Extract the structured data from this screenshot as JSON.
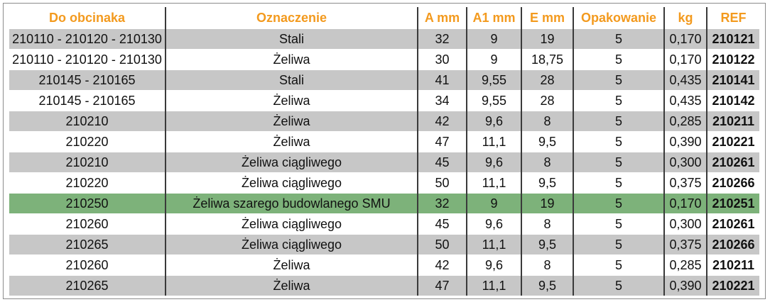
{
  "table": {
    "headers": [
      "Do obcinaka",
      "Oznaczenie",
      "A mm",
      "A1 mm",
      "E mm",
      "Opakowanie",
      "kg",
      "REF"
    ],
    "highlight_color": "#7db27a",
    "header_color": "#f39a1e",
    "rows": [
      [
        "210110 - 210120 - 210130",
        "Stali",
        "32",
        "9",
        "19",
        "5",
        "0,170",
        "210121"
      ],
      [
        "210110 - 210120 - 210130",
        "Żeliwa",
        "30",
        "9",
        "18,75",
        "5",
        "0,170",
        "210122"
      ],
      [
        "210145 - 210165",
        "Stali",
        "41",
        "9,55",
        "28",
        "5",
        "0,435",
        "210141"
      ],
      [
        "210145 - 210165",
        "Żeliwa",
        "34",
        "9,55",
        "28",
        "5",
        "0,435",
        "210142"
      ],
      [
        "210210",
        "Żeliwa",
        "42",
        "9,6",
        "8",
        "5",
        "0,285",
        "210211"
      ],
      [
        "210220",
        "Żeliwa",
        "47",
        "11,1",
        "9,5",
        "5",
        "0,390",
        "210221"
      ],
      [
        "210210",
        "Żeliwa ciągliwego",
        "45",
        "9,6",
        "8",
        "5",
        "0,300",
        "210261"
      ],
      [
        "210220",
        "Żeliwa ciągliwego",
        "50",
        "11,1",
        "9,5",
        "5",
        "0,375",
        "210266"
      ],
      [
        "210250",
        "Żeliwa szarego budowlanego SMU",
        "32",
        "9",
        "19",
        "5",
        "0,170",
        "210251"
      ],
      [
        "210260",
        "Żeliwa ciągliwego",
        "45",
        "9,6",
        "8",
        "5",
        "0,300",
        "210261"
      ],
      [
        "210265",
        "Żeliwa ciągliwego",
        "50",
        "11,1",
        "9,5",
        "5",
        "0,375",
        "210266"
      ],
      [
        "210260",
        "Żeliwa",
        "42",
        "9,6",
        "8",
        "5",
        "0,285",
        "210211"
      ],
      [
        "210265",
        "Żeliwa",
        "47",
        "11,1",
        "9,5",
        "5",
        "0,390",
        "210221"
      ]
    ]
  }
}
